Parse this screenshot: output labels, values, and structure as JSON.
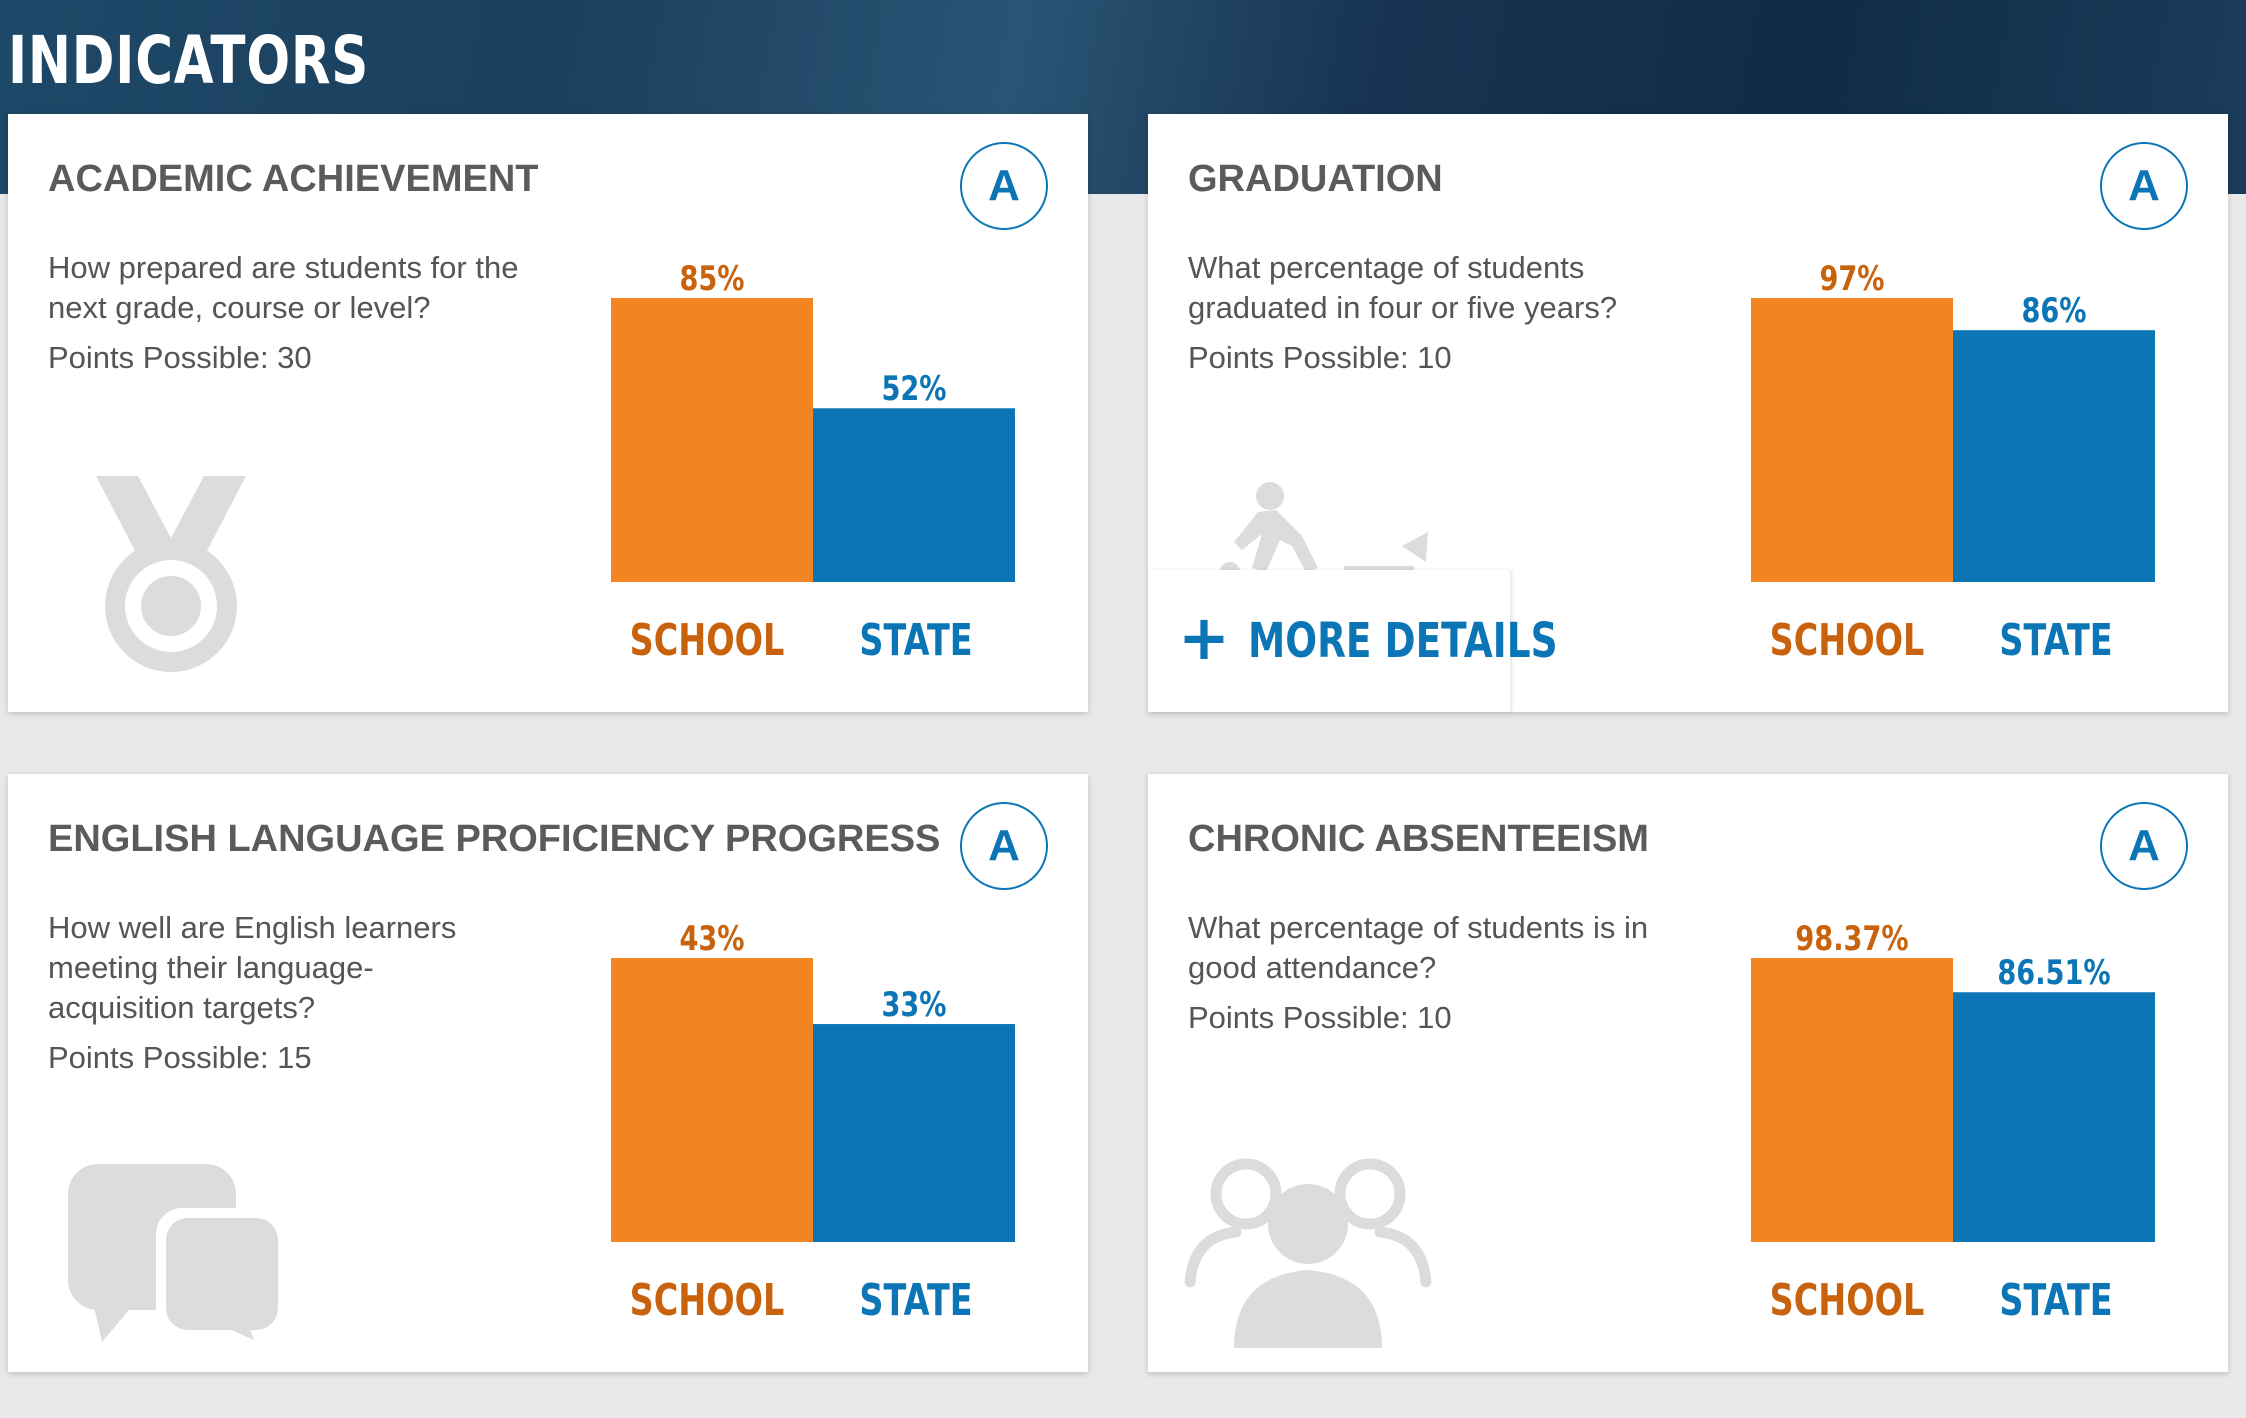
{
  "header": {
    "title": "INDICATORS"
  },
  "colors": {
    "school": "#f28422",
    "school_text": "#c8620c",
    "state": "#0b75b6",
    "icon": "#dcdcdc"
  },
  "cards": [
    {
      "title": "ACADEMIC ACHIEVEMENT",
      "grade": "A",
      "question": "How prepared are students for the next grade, course or level?",
      "points": "Points Possible: 30",
      "icon": "medal-icon"
    },
    {
      "title": "GRADUATION",
      "grade": "A",
      "question": "What percentage of students graduated in four or five years?",
      "points": "Points Possible: 10",
      "icon": "graduation-figure-icon",
      "details_label": "MORE DETAILS"
    },
    {
      "title": "ENGLISH LANGUAGE PROFICIENCY PROGRESS",
      "grade": "A",
      "question": "How well are English learners meeting their language-acquisition targets?",
      "points": "Points Possible: 15",
      "icon": "speech-bubbles-icon"
    },
    {
      "title": "CHRONIC ABSENTEEISM",
      "grade": "A",
      "question": "What percentage of students is in good attendance?",
      "points": "Points Possible: 10",
      "icon": "people-group-icon"
    }
  ],
  "chart_data": [
    {
      "type": "bar",
      "categories": [
        "SCHOOL",
        "STATE"
      ],
      "values": [
        85,
        52
      ],
      "labels": [
        "85%",
        "52%"
      ],
      "ylim": [
        0,
        85
      ]
    },
    {
      "type": "bar",
      "categories": [
        "SCHOOL",
        "STATE"
      ],
      "values": [
        97,
        86
      ],
      "labels": [
        "97%",
        "86%"
      ],
      "ylim": [
        0,
        97
      ]
    },
    {
      "type": "bar",
      "categories": [
        "SCHOOL",
        "STATE"
      ],
      "values": [
        43,
        33
      ],
      "labels": [
        "43%",
        "33%"
      ],
      "ylim": [
        0,
        43
      ]
    },
    {
      "type": "bar",
      "categories": [
        "SCHOOL",
        "STATE"
      ],
      "values": [
        98.37,
        86.51
      ],
      "labels": [
        "98.37%",
        "86.51%"
      ],
      "ylim": [
        0,
        98.37
      ]
    }
  ]
}
